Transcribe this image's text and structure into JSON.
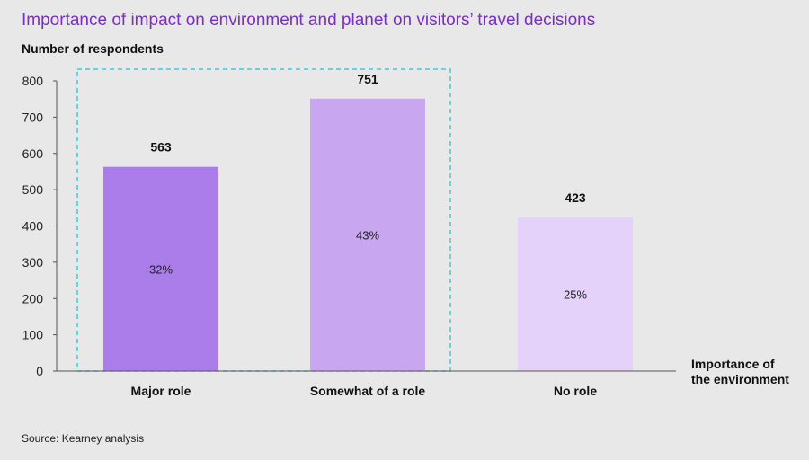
{
  "title": "Importance of impact on environment and planet on visitors’ travel decisions",
  "source": "Source: Kearney analysis",
  "chart_data": {
    "type": "bar",
    "ylabel": "Number of respondents",
    "xlabel_lines": [
      "Importance of",
      "the environment"
    ],
    "categories": [
      "Major role",
      "Somewhat of a role",
      "No role"
    ],
    "values": [
      563,
      751,
      423
    ],
    "percent_labels": [
      "32%",
      "43%",
      "25%"
    ],
    "value_labels": [
      "563",
      "751",
      "423"
    ],
    "ylim": [
      0,
      800
    ],
    "yticks": [
      0,
      100,
      200,
      300,
      400,
      500,
      600,
      700,
      800
    ],
    "bar_colors": [
      "#ab7deb",
      "#c9a6f0",
      "#e5d2fa"
    ],
    "highlight_categories": [
      "Major role",
      "Somewhat of a role"
    ],
    "highlight_color": "#3ec9d6",
    "grid": false
  }
}
